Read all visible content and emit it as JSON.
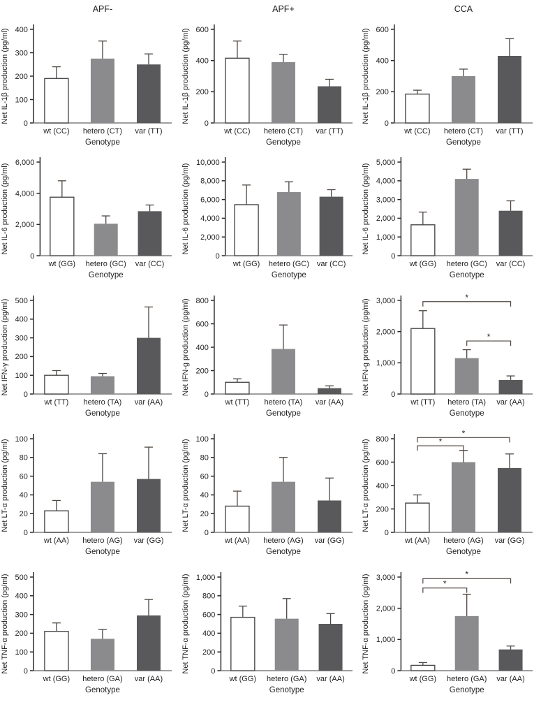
{
  "figure": {
    "column_titles": [
      "APF-",
      "APF+",
      "CCA"
    ],
    "xlabel": "Genotype",
    "significance_symbol": "*",
    "colors": {
      "wt_fill": "#ffffff",
      "hetero_fill": "#8b8b8d",
      "var_fill": "#59595b",
      "bar_stroke": "#4b4b4d",
      "error_bar": "#4e4640",
      "y_axis": "#2d2b29",
      "x_baseline": "#7f7f7f",
      "text": "#231f20"
    }
  },
  "chart_data": [
    {
      "type": "bar",
      "group": "APF-",
      "ylabel": "Net IL-1β production (pg/ml)",
      "xlabel": "Genotype",
      "ylim": [
        0,
        400
      ],
      "yticks": [
        0,
        100,
        200,
        300,
        400
      ],
      "categories": [
        "wt (CC)",
        "hetero (CT)",
        "var (TT)"
      ],
      "values": [
        190,
        275,
        250
      ],
      "errors_upper": [
        50,
        75,
        45
      ],
      "brackets": []
    },
    {
      "type": "bar",
      "group": "APF+",
      "ylabel": "Net IL-1β production (pg/ml)",
      "xlabel": "Genotype",
      "ylim": [
        0,
        600
      ],
      "yticks": [
        0,
        200,
        400,
        600
      ],
      "categories": [
        "wt (CC)",
        "hetero (CT)",
        "var (TT)"
      ],
      "values": [
        415,
        390,
        235
      ],
      "errors_upper": [
        110,
        50,
        45
      ],
      "brackets": []
    },
    {
      "type": "bar",
      "group": "CCA",
      "ylabel": "Net IL-1β production (pg/ml)",
      "xlabel": "Genotype",
      "ylim": [
        0,
        600
      ],
      "yticks": [
        0,
        200,
        400,
        600
      ],
      "categories": [
        "wt (CC)",
        "hetero (CT)",
        "var (TT)"
      ],
      "values": [
        185,
        300,
        430
      ],
      "errors_upper": [
        25,
        45,
        110
      ],
      "brackets": []
    },
    {
      "type": "bar",
      "group": "",
      "ylabel": "Net IL-6 production (pg/ml)",
      "xlabel": "Genotype",
      "ylim": [
        0,
        6000
      ],
      "yticks": [
        0,
        2000,
        4000,
        6000
      ],
      "categories": [
        "wt (GG)",
        "hetero (GC)",
        "var (CC)"
      ],
      "values": [
        3750,
        2050,
        2850
      ],
      "errors_upper": [
        1050,
        500,
        400
      ],
      "brackets": []
    },
    {
      "type": "bar",
      "group": "",
      "ylabel": "Net IL-6 production (pg/ml)",
      "xlabel": "Genotype",
      "ylim": [
        0,
        10000
      ],
      "yticks": [
        0,
        2000,
        4000,
        6000,
        8000,
        10000
      ],
      "categories": [
        "wt (GG)",
        "hetero (GC)",
        "var (CC)"
      ],
      "values": [
        5450,
        6800,
        6300
      ],
      "errors_upper": [
        2100,
        1100,
        750
      ],
      "brackets": []
    },
    {
      "type": "bar",
      "group": "",
      "ylabel": "Net IL-6 production (pg/ml)",
      "xlabel": "Genotype",
      "ylim": [
        0,
        5000
      ],
      "yticks": [
        0,
        1000,
        2000,
        3000,
        4000,
        5000
      ],
      "categories": [
        "wt (GG)",
        "hetero (GC)",
        "var (CC)"
      ],
      "values": [
        1650,
        4100,
        2400
      ],
      "errors_upper": [
        680,
        520,
        530
      ],
      "brackets": []
    },
    {
      "type": "bar",
      "group": "",
      "ylabel": "Net IFN-γ production (pg/ml)",
      "xlabel": "Genotype",
      "ylim": [
        0,
        500
      ],
      "yticks": [
        0,
        100,
        200,
        300,
        400,
        500
      ],
      "categories": [
        "wt (TT)",
        "hetero (TA)",
        "var (AA)"
      ],
      "values": [
        100,
        95,
        300
      ],
      "errors_upper": [
        25,
        15,
        165
      ],
      "brackets": []
    },
    {
      "type": "bar",
      "group": "",
      "ylabel": "Net IFN-g production (pg/ml)",
      "xlabel": "Genotype",
      "ylim": [
        0,
        800
      ],
      "yticks": [
        0,
        200,
        400,
        600,
        800
      ],
      "categories": [
        "wt (TT)",
        "hetero (TA)",
        "var (AA)"
      ],
      "values": [
        100,
        385,
        50
      ],
      "errors_upper": [
        30,
        205,
        20
      ],
      "brackets": []
    },
    {
      "type": "bar",
      "group": "",
      "ylabel": "Net IFN-g production (pg/ml)",
      "xlabel": "Genotype",
      "ylim": [
        0,
        3000
      ],
      "yticks": [
        0,
        1000,
        2000,
        3000
      ],
      "categories": [
        "wt (TT)",
        "hetero (TA)",
        "var (AA)"
      ],
      "values": [
        2100,
        1150,
        450
      ],
      "errors_upper": [
        570,
        270,
        130
      ],
      "brackets": [
        {
          "from": 0,
          "to": 2,
          "y": 2960,
          "label": "*"
        },
        {
          "from": 1,
          "to": 2,
          "y": 1700,
          "label": "*"
        }
      ]
    },
    {
      "type": "bar",
      "group": "",
      "ylabel": "Net LT-α production (pg/ml)",
      "xlabel": "Genotype",
      "ylim": [
        0,
        100
      ],
      "yticks": [
        0,
        20,
        40,
        60,
        80,
        100
      ],
      "categories": [
        "wt (AA)",
        "hetero (AG)",
        "var (GG)"
      ],
      "values": [
        23,
        54,
        57
      ],
      "errors_upper": [
        11,
        30,
        34
      ],
      "brackets": []
    },
    {
      "type": "bar",
      "group": "",
      "ylabel": "Net LT-α production (pg/ml)",
      "xlabel": "Genotype",
      "ylim": [
        0,
        100
      ],
      "yticks": [
        0,
        20,
        40,
        60,
        80,
        100
      ],
      "categories": [
        "wt (AA)",
        "hetero (AG)",
        "var (GG)"
      ],
      "values": [
        28,
        54,
        34
      ],
      "errors_upper": [
        16,
        26,
        24
      ],
      "brackets": []
    },
    {
      "type": "bar",
      "group": "",
      "ylabel": "Net LT-α production (pg/ml)",
      "xlabel": "Genotype",
      "ylim": [
        0,
        800
      ],
      "yticks": [
        0,
        200,
        400,
        600,
        800
      ],
      "categories": [
        "wt (AA)",
        "hetero (AG)",
        "var (GG)"
      ],
      "values": [
        250,
        600,
        550
      ],
      "errors_upper": [
        70,
        100,
        120
      ],
      "brackets": [
        {
          "from": 0,
          "to": 1,
          "y": 740,
          "label": "*"
        },
        {
          "from": 0,
          "to": 2,
          "y": 810,
          "label": "*"
        }
      ]
    },
    {
      "type": "bar",
      "group": "",
      "ylabel": "Net TNF-α production (pg/ml)",
      "xlabel": "Genotype",
      "ylim": [
        0,
        500
      ],
      "yticks": [
        0,
        100,
        200,
        300,
        400,
        500
      ],
      "categories": [
        "wt (GG)",
        "hetero (GA)",
        "var (AA)"
      ],
      "values": [
        210,
        170,
        295
      ],
      "errors_upper": [
        45,
        50,
        85
      ],
      "brackets": []
    },
    {
      "type": "bar",
      "group": "",
      "ylabel": "Net TNF-α production (pg/ml)",
      "xlabel": "Genotype",
      "ylim": [
        0,
        1000
      ],
      "yticks": [
        0,
        200,
        400,
        600,
        800,
        1000
      ],
      "categories": [
        "wt (GG)",
        "hetero (GA)",
        "var (AA)"
      ],
      "values": [
        570,
        555,
        500
      ],
      "errors_upper": [
        120,
        215,
        110
      ],
      "brackets": []
    },
    {
      "type": "bar",
      "group": "",
      "ylabel": "Net TNF-α production (pg/ml)",
      "xlabel": "Genotype",
      "ylim": [
        0,
        3000
      ],
      "yticks": [
        0,
        1000,
        2000,
        3000
      ],
      "categories": [
        "wt (GG)",
        "hetero (GA)",
        "var (AA)"
      ],
      "values": [
        170,
        1750,
        680
      ],
      "errors_upper": [
        90,
        700,
        110
      ],
      "brackets": [
        {
          "from": 0,
          "to": 1,
          "y": 2650,
          "label": "*"
        },
        {
          "from": 0,
          "to": 2,
          "y": 2950,
          "label": "*"
        }
      ]
    }
  ]
}
